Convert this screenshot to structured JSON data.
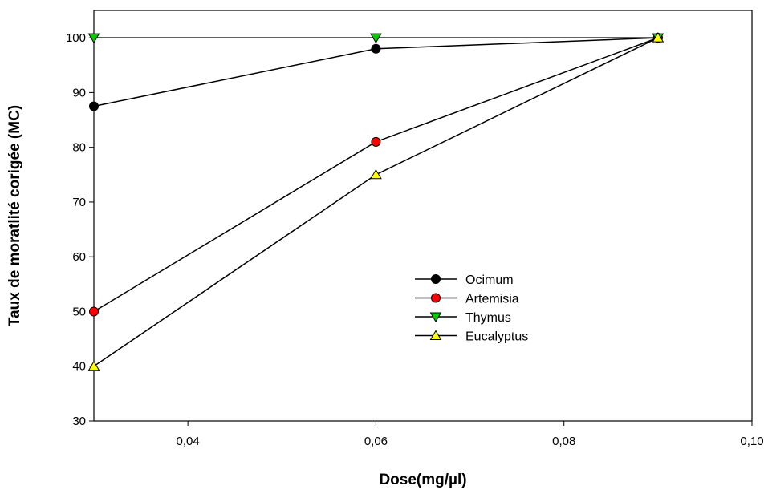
{
  "chart_data": {
    "type": "line",
    "title": "",
    "xlabel": "Dose(mg/µl)",
    "ylabel": "Taux de moratlité corigée (MC)",
    "xlim": [
      0.03,
      0.1
    ],
    "ylim": [
      30,
      105
    ],
    "x_ticks": [
      0.04,
      0.06,
      0.08,
      0.1
    ],
    "x_tick_labels": [
      "0,04",
      "0,06",
      "0,08",
      "0,10"
    ],
    "y_ticks": [
      30,
      40,
      50,
      60,
      70,
      80,
      90,
      100
    ],
    "y_tick_labels": [
      "30",
      "40",
      "50",
      "60",
      "70",
      "80",
      "90",
      "100"
    ],
    "x": [
      0.03,
      0.06,
      0.09
    ],
    "grid": false,
    "legend_position": "center-right",
    "series": [
      {
        "name": "Ocimum",
        "values": [
          87.5,
          98,
          100
        ],
        "marker": "circle",
        "color": "#000000"
      },
      {
        "name": "Artemisia",
        "values": [
          50,
          81,
          100
        ],
        "marker": "circle",
        "color": "#ff0000"
      },
      {
        "name": "Thymus",
        "values": [
          100,
          100,
          100
        ],
        "marker": "triangle-down",
        "color": "#00cc00"
      },
      {
        "name": "Eucalyptus",
        "values": [
          40,
          75,
          100
        ],
        "marker": "triangle-up",
        "color": "#ffff00"
      }
    ]
  }
}
